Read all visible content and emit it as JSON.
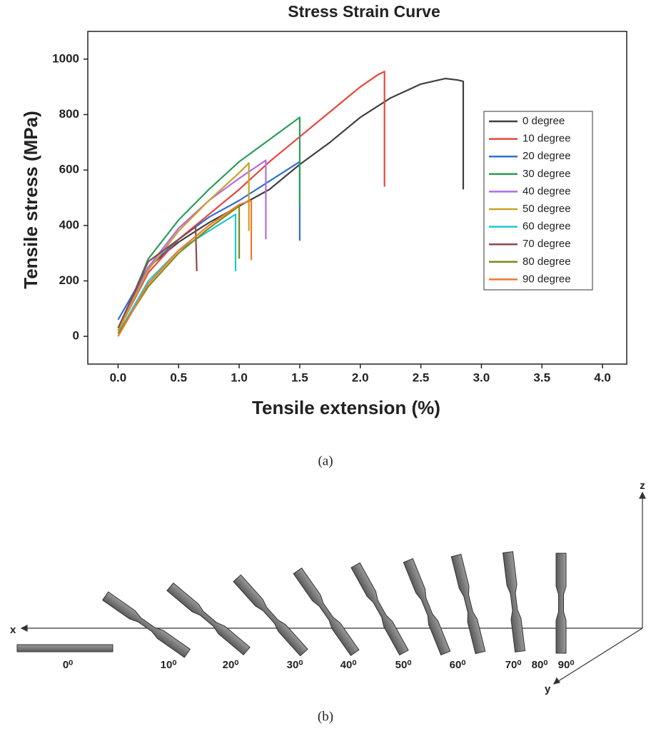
{
  "chart_data": {
    "type": "line",
    "title": "Stress Strain Curve",
    "xlabel": "Tensile extension (%)",
    "ylabel": "Tensile stress (MPa)",
    "xlim": [
      -0.25,
      4.2
    ],
    "ylim": [
      -100,
      1100
    ],
    "xticks": [
      {
        "value": 0,
        "label": "0.0"
      },
      0.5,
      {
        "value": 1,
        "label": "1.0"
      },
      1.5,
      {
        "value": 2,
        "label": "2.0"
      },
      2.5,
      {
        "value": 3,
        "label": "3.0"
      },
      3.5,
      {
        "value": 4,
        "label": "4.0"
      }
    ],
    "yticks": [
      0,
      200,
      400,
      600,
      800,
      1000
    ],
    "grid": false,
    "legend": "right",
    "series": [
      {
        "name": "0 degree",
        "color": "#404040",
        "x": [
          0,
          0.25,
          0.5,
          0.75,
          1.0,
          1.25,
          1.5,
          1.75,
          2.0,
          2.25,
          2.5,
          2.7,
          2.8,
          2.85,
          2.85
        ],
        "values": [
          30,
          250,
          340,
          410,
          470,
          530,
          620,
          700,
          790,
          860,
          910,
          930,
          925,
          920,
          530
        ]
      },
      {
        "name": "10 degree",
        "color": "#e8463c",
        "x": [
          0,
          0.25,
          0.5,
          0.75,
          1.0,
          1.25,
          1.5,
          1.75,
          2.0,
          2.15,
          2.2,
          2.2
        ],
        "values": [
          20,
          230,
          350,
          440,
          530,
          630,
          720,
          810,
          900,
          945,
          955,
          540
        ]
      },
      {
        "name": "20 degree",
        "color": "#2f6fd0",
        "x": [
          0,
          0.25,
          0.5,
          0.75,
          1.0,
          1.25,
          1.5,
          1.5
        ],
        "values": [
          60,
          250,
          350,
          430,
          490,
          560,
          630,
          345
        ]
      },
      {
        "name": "30 degree",
        "color": "#2a9d5c",
        "x": [
          0,
          0.25,
          0.5,
          0.75,
          1.0,
          1.25,
          1.5,
          1.5
        ],
        "values": [
          20,
          280,
          420,
          530,
          630,
          710,
          790,
          470
        ]
      },
      {
        "name": "40 degree",
        "color": "#b06ee6",
        "x": [
          0,
          0.25,
          0.5,
          0.75,
          1.0,
          1.22,
          1.22
        ],
        "values": [
          20,
          250,
          390,
          490,
          570,
          635,
          350
        ]
      },
      {
        "name": "50 degree",
        "color": "#c9a227",
        "x": [
          0,
          0.25,
          0.5,
          0.75,
          1.0,
          1.08,
          1.08
        ],
        "values": [
          20,
          240,
          380,
          490,
          590,
          625,
          380
        ]
      },
      {
        "name": "60 degree",
        "color": "#22c5d0",
        "x": [
          0,
          0.25,
          0.5,
          0.75,
          0.97,
          0.97
        ],
        "values": [
          10,
          200,
          310,
          380,
          440,
          235
        ]
      },
      {
        "name": "70 degree",
        "color": "#8a4b4b",
        "x": [
          0,
          0.25,
          0.5,
          0.64,
          0.65
        ],
        "values": [
          30,
          270,
          350,
          395,
          235
        ]
      },
      {
        "name": "80 degree",
        "color": "#7a8c1a",
        "x": [
          0,
          0.25,
          0.5,
          0.75,
          1.0,
          1.0
        ],
        "values": [
          10,
          180,
          300,
          390,
          470,
          280
        ]
      },
      {
        "name": "90 degree",
        "color": "#f07828",
        "x": [
          0,
          0.25,
          0.5,
          0.75,
          1.0,
          1.1,
          1.1
        ],
        "values": [
          0,
          190,
          310,
          400,
          475,
          490,
          275
        ]
      }
    ]
  },
  "captions": [
    "(a)",
    "(b)"
  ],
  "diagram": {
    "axes": [
      "x",
      "y",
      "z"
    ],
    "labels": [
      "0⁰",
      "10⁰",
      "20⁰",
      "30⁰",
      "40⁰",
      "50⁰",
      "60⁰",
      "70⁰",
      "80⁰",
      "90⁰"
    ]
  }
}
